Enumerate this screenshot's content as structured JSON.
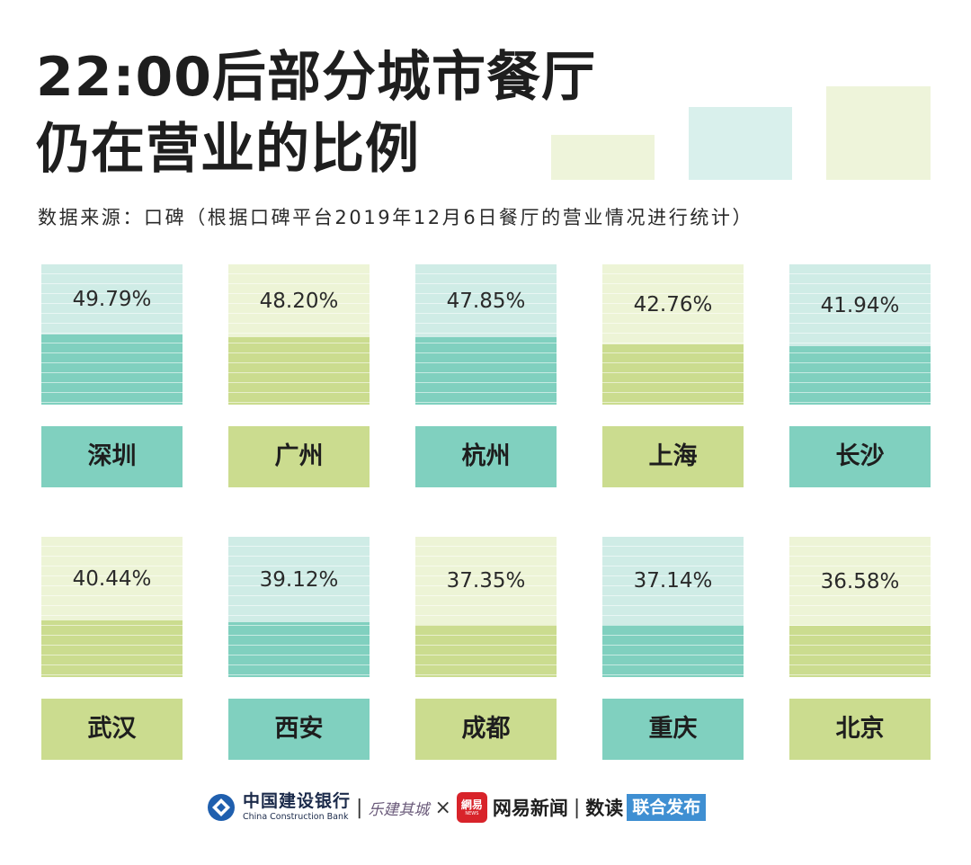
{
  "title_line1": "22:00后部分城市餐厅",
  "title_line2": "仍在营业的比例",
  "source": "数据来源：口碑（根据口碑平台2019年12月6日餐厅的营业情况进行统计）",
  "colors": {
    "teal_dark": "#80d0bf",
    "teal_light": "#cfece6",
    "green_dark": "#cbdc8f",
    "green_light": "#edf4d6",
    "deco_green": "#eef4da",
    "deco_teal": "#d9f0ec",
    "text": "#1e1e1e"
  },
  "chart_data": {
    "type": "bar",
    "title": "22:00后部分城市餐厅仍在营业的比例",
    "value_unit": "%",
    "ylim": [
      0,
      100
    ],
    "categories": [
      "深圳",
      "广州",
      "杭州",
      "上海",
      "长沙",
      "武汉",
      "西安",
      "成都",
      "重庆",
      "北京"
    ],
    "values": [
      49.79,
      48.2,
      47.85,
      42.76,
      41.94,
      40.44,
      39.12,
      37.35,
      37.14,
      36.58
    ],
    "labels": [
      "49.79%",
      "48.20%",
      "47.85%",
      "42.76%",
      "41.94%",
      "40.44%",
      "39.12%",
      "37.35%",
      "37.14%",
      "36.58%"
    ],
    "palette": [
      "teal",
      "green",
      "teal",
      "green",
      "teal",
      "green",
      "teal",
      "green",
      "teal",
      "green"
    ]
  },
  "footer": {
    "ccb_cn": "中国建设银行",
    "ccb_en": "China Construction Bank",
    "separator": "|",
    "lejian": "乐建其城",
    "times": "×",
    "netease_logo": "網易",
    "netease_logo_sub": "NEWS",
    "netease_text": "网易新闻",
    "shudu": "数读",
    "badge": "联合发布"
  }
}
